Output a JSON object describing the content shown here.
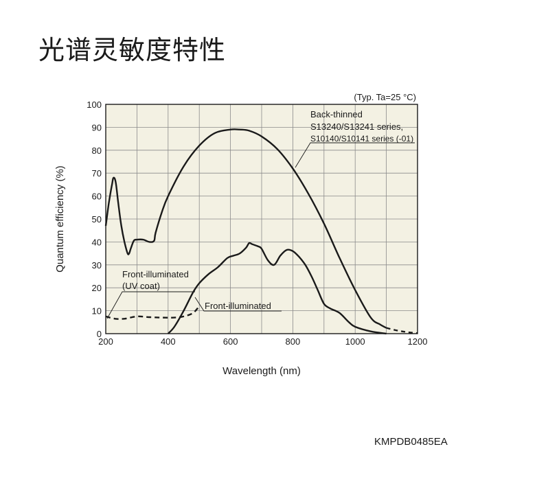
{
  "page": {
    "title": "光谱灵敏度特性",
    "footer_code": "KMPDB0485EA"
  },
  "chart_data": {
    "type": "line",
    "title": "",
    "condition_note": "(Typ. Ta=25 °C)",
    "xlabel": "Wavelength (nm)",
    "ylabel": "Quantum efficiency (%)",
    "xlim": [
      200,
      1200
    ],
    "ylim": [
      0,
      100
    ],
    "x_ticks": [
      200,
      400,
      600,
      800,
      1000,
      1200
    ],
    "y_ticks": [
      0,
      10,
      20,
      30,
      40,
      50,
      60,
      70,
      80,
      90,
      100
    ],
    "grid": true,
    "plot_bg": "#f3f1e3",
    "series": [
      {
        "name": "Back-thinned S13240/S13241 series, S10140/S10141 series (-01)",
        "label_lines": [
          "Back-thinned",
          "S13240/S13241 series,",
          "S10140/S10141 series (-01)"
        ],
        "style": "solid",
        "solid_until": 1100,
        "x": [
          200,
          210,
          220,
          225,
          232,
          240,
          250,
          260,
          270,
          275,
          280,
          290,
          300,
          320,
          340,
          355,
          360,
          380,
          400,
          450,
          500,
          550,
          600,
          630,
          660,
          700,
          750,
          800,
          850,
          900,
          950,
          1000,
          1050,
          1080,
          1100,
          1130,
          1160,
          1190,
          1200
        ],
        "y": [
          47,
          57,
          65,
          68,
          66,
          57,
          47,
          40,
          35,
          35,
          37,
          40.5,
          41,
          41,
          40,
          40.5,
          44,
          53,
          60,
          73,
          82,
          87.5,
          89,
          89,
          88.5,
          86,
          80.5,
          72,
          61,
          48,
          33,
          19,
          7,
          4,
          2.5,
          1.5,
          0.8,
          0.3,
          0.2
        ]
      },
      {
        "name": "Front-illuminated",
        "label_lines": [
          "Front-illuminated"
        ],
        "style": "solid",
        "x": [
          400,
          420,
          450,
          480,
          500,
          530,
          560,
          590,
          610,
          630,
          650,
          660,
          670,
          690,
          700,
          720,
          740,
          760,
          780,
          800,
          820,
          840,
          860,
          880,
          900,
          920,
          950,
          980,
          1000,
          1050,
          1100
        ],
        "y": [
          0,
          3,
          10,
          18,
          22,
          26,
          29,
          33,
          34,
          35,
          37.5,
          39.5,
          39,
          38,
          37,
          32,
          30,
          34,
          36.5,
          36,
          33.5,
          30,
          25,
          19,
          13,
          11,
          9,
          5,
          3,
          1,
          0
        ]
      },
      {
        "name": "Front-illuminated (UV coat)",
        "label_lines": [
          "Front-illuminated",
          "(UV coat)"
        ],
        "style": "dashed",
        "x": [
          200,
          230,
          260,
          300,
          340,
          380,
          420,
          450,
          480,
          500
        ],
        "y": [
          7.5,
          6.5,
          6.5,
          7.5,
          7.2,
          7.0,
          7.0,
          7.5,
          9,
          12
        ]
      }
    ]
  }
}
